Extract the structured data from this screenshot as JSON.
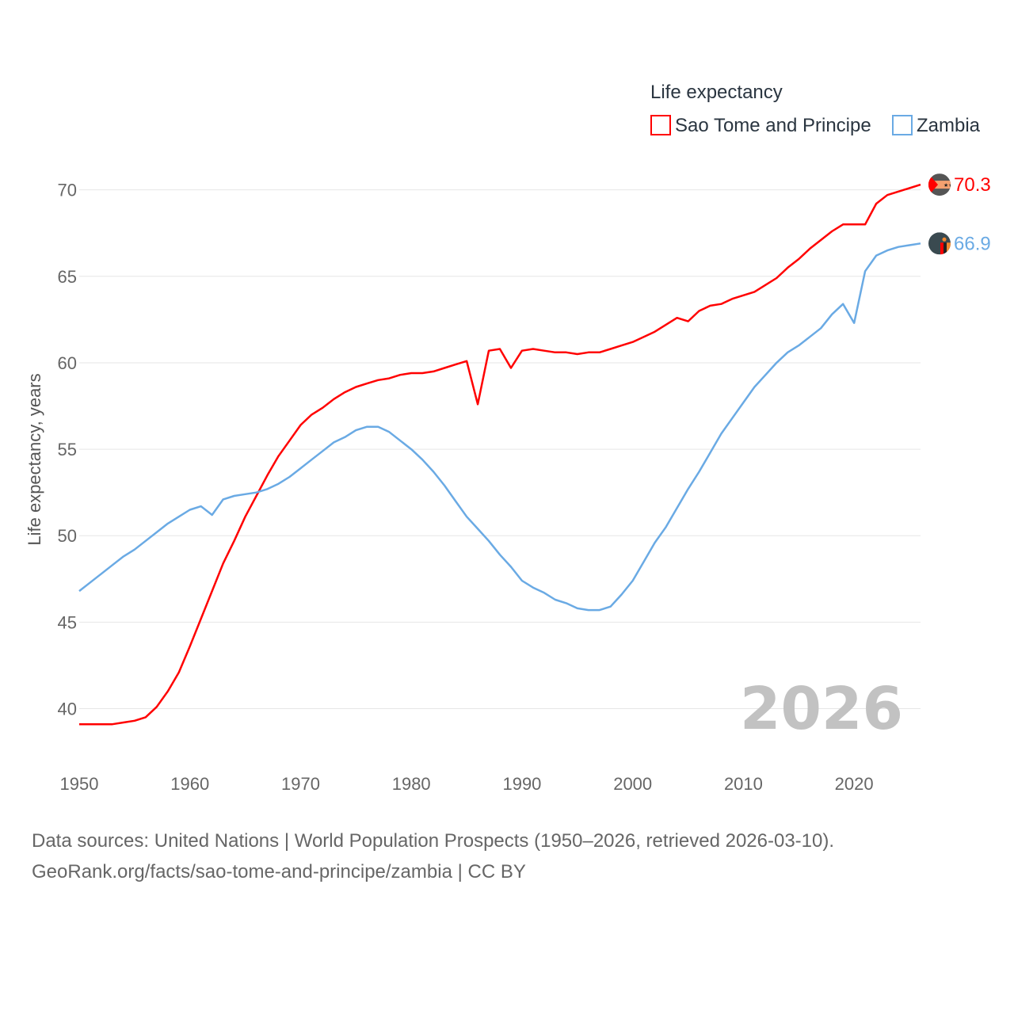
{
  "chart_data": {
    "type": "line",
    "legend_title": "Life expectancy",
    "ylabel": "Life expectancy, years",
    "xlabel": "",
    "ylim": [
      37,
      72
    ],
    "xlim": [
      1950,
      2026
    ],
    "yticks": [
      40,
      45,
      50,
      55,
      60,
      65,
      70
    ],
    "xticks": [
      1950,
      1960,
      1970,
      1980,
      1990,
      2000,
      2010,
      2020
    ],
    "year_label": "2026",
    "legend_position": "top-right",
    "series": [
      {
        "name": "Sao Tome and Principe",
        "color": "#ff0000",
        "end_label": "70.3",
        "x": [
          1950,
          1951,
          1952,
          1953,
          1954,
          1955,
          1956,
          1957,
          1958,
          1959,
          1960,
          1961,
          1962,
          1963,
          1964,
          1965,
          1966,
          1967,
          1968,
          1969,
          1970,
          1971,
          1972,
          1973,
          1974,
          1975,
          1976,
          1977,
          1978,
          1979,
          1980,
          1981,
          1982,
          1983,
          1984,
          1985,
          1986,
          1987,
          1988,
          1989,
          1990,
          1991,
          1992,
          1993,
          1994,
          1995,
          1996,
          1997,
          1998,
          1999,
          2000,
          2001,
          2002,
          2003,
          2004,
          2005,
          2006,
          2007,
          2008,
          2009,
          2010,
          2011,
          2012,
          2013,
          2014,
          2015,
          2016,
          2017,
          2018,
          2019,
          2020,
          2021,
          2022,
          2023,
          2024,
          2025,
          2026
        ],
        "values": [
          39.1,
          39.1,
          39.1,
          39.1,
          39.2,
          39.3,
          39.5,
          40.1,
          41.0,
          42.1,
          43.6,
          45.2,
          46.8,
          48.4,
          49.7,
          51.1,
          52.3,
          53.5,
          54.6,
          55.5,
          56.4,
          57.0,
          57.4,
          57.9,
          58.3,
          58.6,
          58.8,
          59.0,
          59.1,
          59.3,
          59.4,
          59.4,
          59.5,
          59.7,
          59.9,
          60.1,
          57.6,
          60.7,
          60.8,
          59.7,
          60.7,
          60.8,
          60.7,
          60.6,
          60.6,
          60.5,
          60.6,
          60.6,
          60.8,
          61.0,
          61.2,
          61.5,
          61.8,
          62.2,
          62.6,
          62.4,
          63.0,
          63.3,
          63.4,
          63.7,
          63.9,
          64.1,
          64.5,
          64.9,
          65.5,
          66.0,
          66.6,
          67.1,
          67.6,
          68.0,
          68.0,
          68.0,
          69.2,
          69.7,
          69.9,
          70.1,
          70.3
        ]
      },
      {
        "name": "Zambia",
        "color": "#6aaae4",
        "end_label": "66.9",
        "x": [
          1950,
          1951,
          1952,
          1953,
          1954,
          1955,
          1956,
          1957,
          1958,
          1959,
          1960,
          1961,
          1962,
          1963,
          1964,
          1965,
          1966,
          1967,
          1968,
          1969,
          1970,
          1971,
          1972,
          1973,
          1974,
          1975,
          1976,
          1977,
          1978,
          1979,
          1980,
          1981,
          1982,
          1983,
          1984,
          1985,
          1986,
          1987,
          1988,
          1989,
          1990,
          1991,
          1992,
          1993,
          1994,
          1995,
          1996,
          1997,
          1998,
          1999,
          2000,
          2001,
          2002,
          2003,
          2004,
          2005,
          2006,
          2007,
          2008,
          2009,
          2010,
          2011,
          2012,
          2013,
          2014,
          2015,
          2016,
          2017,
          2018,
          2019,
          2020,
          2021,
          2022,
          2023,
          2024,
          2025,
          2026
        ],
        "values": [
          46.8,
          47.3,
          47.8,
          48.3,
          48.8,
          49.2,
          49.7,
          50.2,
          50.7,
          51.1,
          51.5,
          51.7,
          51.2,
          52.1,
          52.3,
          52.4,
          52.5,
          52.7,
          53.0,
          53.4,
          53.9,
          54.4,
          54.9,
          55.4,
          55.7,
          56.1,
          56.3,
          56.3,
          56.0,
          55.5,
          55.0,
          54.4,
          53.7,
          52.9,
          52.0,
          51.1,
          50.4,
          49.7,
          48.9,
          48.2,
          47.4,
          47.0,
          46.7,
          46.3,
          46.1,
          45.8,
          45.7,
          45.7,
          45.9,
          46.6,
          47.4,
          48.5,
          49.6,
          50.5,
          51.6,
          52.7,
          53.7,
          54.8,
          55.9,
          56.8,
          57.7,
          58.6,
          59.3,
          60.0,
          60.6,
          61.0,
          61.5,
          62.0,
          62.8,
          63.4,
          62.3,
          65.3,
          66.2,
          66.5,
          66.7,
          66.8,
          66.9
        ]
      }
    ]
  },
  "sources": {
    "line1": "Data sources: United Nations | World Population Prospects (1950–2026, retrieved 2026-03-10).",
    "line2": "GeoRank.org/facts/sao-tome-and-principe/zambia | CC BY"
  },
  "flags": {
    "series0_icon": "sao-tome-and-principe-flag-icon",
    "series1_icon": "zambia-flag-icon"
  }
}
